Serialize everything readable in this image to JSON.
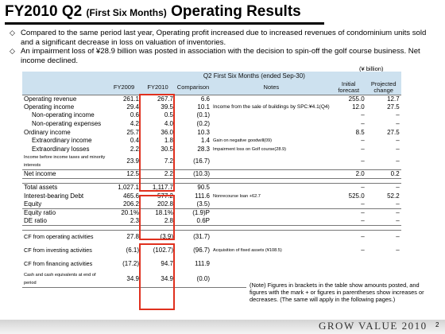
{
  "title": {
    "main": "FY2010 Q2",
    "sub": "(First Six Months)",
    "tail": "Operating Results"
  },
  "bullets": [
    {
      "mark": "◇",
      "text": "Compared to the same period last year, Operating profit increased due to increased revenues of condominium units sold and a significant decrease in loss on valuation of inventories."
    },
    {
      "mark": "◇",
      "text": "An impairment loss of ¥28.9 billion was posted in association with the decision to spin-off the golf course business. Net income declined."
    }
  ],
  "unit": "(¥ billion)",
  "table": {
    "header_period": "Q2 First Six Months (ended Sep-30)",
    "columns": {
      "fy2009": "FY2009",
      "fy2010": "FY2010",
      "comparison": "Comparison",
      "notes": "Notes",
      "initial": "Initial forecast",
      "projected": "Projected change"
    },
    "income": [
      {
        "label": "Operating revenue",
        "fy2009": "261.1",
        "fy2010": "267.7",
        "comparison": "6.6",
        "notes": "",
        "initial": "255.0",
        "projected": "12.7"
      },
      {
        "label": "Operating income",
        "fy2009": "29.4",
        "fy2010": "39.5",
        "comparison": "10.1",
        "notes": "Income from the sale of buildings by SPC:¥4.1(Q4)",
        "initial": "12.0",
        "projected": "27.5"
      },
      {
        "label": "Non-operating income",
        "fy2009": "0.6",
        "fy2010": "0.5",
        "comparison": "(0.1)",
        "notes": "",
        "initial": "–",
        "projected": "–"
      },
      {
        "label": "Non-operating expenses",
        "fy2009": "4.2",
        "fy2010": "4.0",
        "comparison": "(0.2)",
        "notes": "",
        "initial": "–",
        "projected": "–"
      },
      {
        "label": "Ordinary income",
        "fy2009": "25.7",
        "fy2010": "36.0",
        "comparison": "10.3",
        "notes": "",
        "initial": "8.5",
        "projected": "27.5"
      },
      {
        "label": "Extraordinary income",
        "fy2009": "0.4",
        "fy2010": "1.8",
        "comparison": "1.4",
        "notes": "Gain on negative goodwill(09)",
        "initial": "–",
        "projected": "–"
      },
      {
        "label": "Extraordinary losses",
        "fy2009": "2.2",
        "fy2010": "30.5",
        "comparison": "28.3",
        "notes": "Impairment loss on Golf course(28.9)",
        "initial": "–",
        "projected": "–"
      },
      {
        "label": "Income before income taxes and minority interests",
        "fy2009": "23.9",
        "fy2010": "7.2",
        "comparison": "(16.7)",
        "notes": "",
        "initial": "–",
        "projected": "–"
      },
      {
        "label": "Net income",
        "fy2009": "12.5",
        "fy2010": "2.2",
        "comparison": "(10.3)",
        "notes": "",
        "initial": "2.0",
        "projected": "0.2"
      }
    ],
    "balance": [
      {
        "label": "Total assets",
        "fy2009": "1,027.1",
        "fy2010": "1,117.7",
        "comparison": "90.5",
        "notes": "",
        "initial": "–",
        "projected": "–"
      },
      {
        "label": "Interest-bearing Debt",
        "fy2009": "465.6",
        "fy2010": "577.2",
        "comparison": "111.6",
        "notes": "Nonrecourse loan +62.7",
        "initial": "525.0",
        "projected": "52.2"
      },
      {
        "label": "Equity",
        "fy2009": "206.2",
        "fy2010": "202.8",
        "comparison": "(3.5)",
        "notes": "",
        "initial": "–",
        "projected": "–"
      },
      {
        "label": "Equity ratio",
        "fy2009": "20.1%",
        "fy2010": "18.1%",
        "comparison": "(1.9)P",
        "notes": "",
        "initial": "–",
        "projected": "–"
      },
      {
        "label": "DE ratio",
        "fy2009": "2.3",
        "fy2010": "2.8",
        "comparison": "0.6P",
        "notes": "",
        "initial": "–",
        "projected": "–"
      }
    ],
    "cashflow": [
      {
        "label": "CF from operating activities",
        "fy2009": "27.8",
        "fy2010": "(3.9)",
        "comparison": "(31.7)",
        "notes": "",
        "initial": "–",
        "projected": "–"
      },
      {
        "label": "CF from investing activities",
        "fy2009": "(6.1)",
        "fy2010": "(102.7)",
        "comparison": "(96.7)",
        "notes": "Acquisition of fixed assets (¥108.5)",
        "initial": "–",
        "projected": "–"
      },
      {
        "label": "CF from financing activities",
        "fy2009": "(17.2)",
        "fy2010": "94.7",
        "comparison": "111.9",
        "notes": "",
        "initial": "",
        "projected": ""
      },
      {
        "label": "Cash and cash equivalents at end of period",
        "fy2009": "34.9",
        "fy2010": "34.9",
        "comparison": "(0.0)",
        "notes": "",
        "initial": "",
        "projected": ""
      }
    ]
  },
  "note": "(Note) Figures in brackets in the table show amounts posted, and figures with the mark + or figures in parentheses show increases or decreases. (The same will apply in the following pages.)",
  "footer": {
    "logo": "GROW VALUE 2010",
    "page": "2"
  },
  "colors": {
    "header_fill": "#cde1ef",
    "highlight_border": "#e0301e"
  }
}
